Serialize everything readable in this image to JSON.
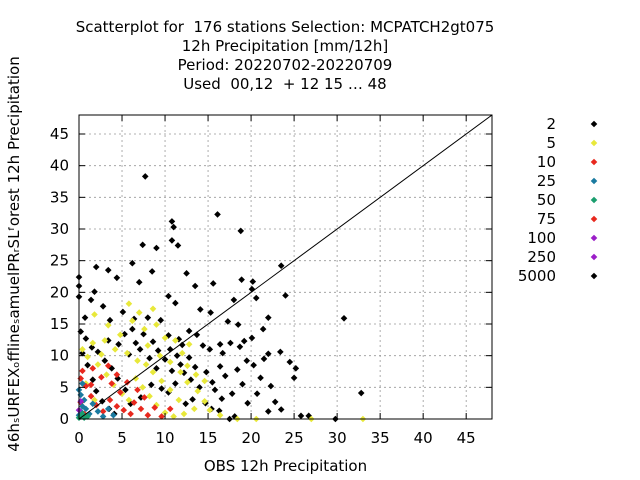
{
  "chart_data": {
    "type": "scatter",
    "title_lines": [
      "Scatterplot for  176 stations Selection: MCPATCH2gt075",
      "12h Precipitation [mm/12h]",
      "Period: 20220702-20220709",
      "Used  00,12  + 12 15 … 48"
    ],
    "xlabel": "OBS 12h Precipitation",
    "ylabel": "46hₛURFEXₒfflineₛamuelPRᵣSLᶠorest 12h Precipitation",
    "xlim": [
      0,
      48
    ],
    "ylim": [
      0,
      48
    ],
    "x_ticks": [
      "0",
      "5",
      "10",
      "15",
      "20",
      "25",
      "30",
      "35",
      "40",
      "45"
    ],
    "y_ticks": [
      "0",
      "5",
      "10",
      "15",
      "20",
      "25",
      "30",
      "35",
      "40",
      "45"
    ],
    "grid": true,
    "diagonal": true,
    "legend_position": "right",
    "series": [
      {
        "name": "2",
        "color": "#000000",
        "points": [
          [
            7.7,
            38.3
          ],
          [
            10.8,
            31.2
          ],
          [
            11,
            30.3
          ],
          [
            16.1,
            32.3
          ],
          [
            18.8,
            29.7
          ],
          [
            7.4,
            27.5
          ],
          [
            9,
            27
          ],
          [
            10.8,
            28.2
          ],
          [
            11.5,
            27.4
          ],
          [
            30.8,
            15.9
          ],
          [
            32.8,
            4.1
          ],
          [
            23.5,
            24.2
          ],
          [
            20.2,
            21.7
          ],
          [
            20.6,
            19.1
          ],
          [
            20.1,
            20.5
          ],
          [
            2,
            24
          ],
          [
            3.4,
            23.5
          ],
          [
            6.2,
            24.6
          ],
          [
            7,
            21.6
          ],
          [
            8.5,
            23.3
          ],
          [
            0,
            22.4
          ],
          [
            0,
            21
          ],
          [
            0,
            19.3
          ],
          [
            1.8,
            20.1
          ],
          [
            4.4,
            22.3
          ],
          [
            12.5,
            23
          ],
          [
            13.5,
            21
          ],
          [
            15.6,
            21.4
          ],
          [
            18.9,
            22
          ],
          [
            10.4,
            19.4
          ],
          [
            11.2,
            18.3
          ],
          [
            14.1,
            17.3
          ],
          [
            15.3,
            16.8
          ],
          [
            17.3,
            15.4
          ],
          [
            18.5,
            14.9
          ],
          [
            16.4,
            11.8
          ],
          [
            17.6,
            12
          ],
          [
            18.7,
            11.4
          ],
          [
            19.5,
            9.2
          ],
          [
            20.3,
            8.5
          ],
          [
            21.5,
            9.5
          ],
          [
            22,
            10.3
          ],
          [
            23.4,
            10.6
          ],
          [
            24.5,
            9
          ],
          [
            25.2,
            8
          ],
          [
            25,
            6.5
          ],
          [
            22.3,
            5.2
          ],
          [
            21.1,
            6.5
          ],
          [
            20.7,
            4
          ],
          [
            19.6,
            2.5
          ],
          [
            18.1,
            0.4
          ],
          [
            17.5,
            0
          ],
          [
            16.3,
            1.3
          ],
          [
            15.4,
            1.6
          ],
          [
            14.7,
            2.5
          ],
          [
            13.2,
            3.1
          ],
          [
            12.4,
            2.4
          ],
          [
            22.8,
            2.7
          ],
          [
            23.5,
            1.5
          ],
          [
            22,
            1.2
          ],
          [
            25.8,
            0.5
          ],
          [
            26.7,
            0.5
          ],
          [
            29.8,
            0
          ],
          [
            9.5,
            15.6
          ],
          [
            8,
            16
          ],
          [
            6.4,
            15.8
          ],
          [
            5.1,
            16.9
          ],
          [
            3.6,
            15.6
          ],
          [
            2.8,
            17.8
          ],
          [
            1.4,
            18.8
          ],
          [
            0.7,
            16
          ],
          [
            10.4,
            13.2
          ],
          [
            11.6,
            12.6
          ],
          [
            12.8,
            13.9
          ],
          [
            13.7,
            13.3
          ],
          [
            14.4,
            11.6
          ],
          [
            15.2,
            11
          ],
          [
            16.7,
            10.4
          ],
          [
            16.4,
            8.3
          ],
          [
            14.8,
            7.4
          ],
          [
            13.5,
            8.2
          ],
          [
            12.8,
            9.7
          ],
          [
            12.2,
            7.3
          ],
          [
            11.2,
            5.6
          ],
          [
            10.4,
            4.2
          ],
          [
            9.6,
            4.8
          ],
          [
            8.4,
            5.4
          ],
          [
            7.2,
            3.4
          ],
          [
            6,
            2.4
          ],
          [
            5.4,
            4.6
          ],
          [
            4.5,
            6.4
          ],
          [
            3.8,
            8
          ],
          [
            3,
            9.2
          ],
          [
            2.2,
            10.6
          ],
          [
            1.5,
            11.3
          ],
          [
            0.8,
            12.7
          ],
          [
            0.2,
            13.8
          ],
          [
            0.4,
            10.4
          ],
          [
            1,
            8.5
          ],
          [
            1.6,
            6.2
          ],
          [
            2,
            4.4
          ],
          [
            2.7,
            2.8
          ],
          [
            3.5,
            1.6
          ],
          [
            4.1,
            0.8
          ],
          [
            5.8,
            10.2
          ],
          [
            6.6,
            12
          ],
          [
            7.5,
            13.4
          ],
          [
            8.6,
            12.2
          ],
          [
            9.2,
            10.8
          ],
          [
            10,
            9.4
          ],
          [
            10.6,
            11
          ],
          [
            11.4,
            10
          ],
          [
            12,
            11.7
          ],
          [
            3.4,
            12.4
          ],
          [
            4.6,
            11.8
          ],
          [
            5.3,
            13.4
          ],
          [
            6.2,
            14.2
          ],
          [
            7.1,
            11
          ],
          [
            8.2,
            9.6
          ],
          [
            9,
            8
          ],
          [
            10.8,
            7.6
          ],
          [
            11.8,
            8.6
          ],
          [
            13,
            6.2
          ],
          [
            14,
            5
          ],
          [
            15.5,
            5.8
          ],
          [
            17,
            6.8
          ],
          [
            18.4,
            7.8
          ],
          [
            19,
            5.5
          ],
          [
            17.8,
            4
          ],
          [
            16.6,
            3.2
          ],
          [
            15.8,
            4.6
          ],
          [
            19.2,
            12.3
          ],
          [
            20.1,
            12.8
          ],
          [
            21.4,
            14.2
          ],
          [
            22,
            16
          ],
          [
            24,
            19.5
          ],
          [
            18,
            18.8
          ]
        ]
      },
      {
        "name": "5",
        "color": "#e8e83a",
        "points": [
          [
            1.8,
            16.5
          ],
          [
            3.4,
            14.8
          ],
          [
            4.8,
            13.3
          ],
          [
            6.2,
            15.5
          ],
          [
            7.6,
            14.2
          ],
          [
            9,
            14.9
          ],
          [
            3,
            12.4
          ],
          [
            4.2,
            11
          ],
          [
            5.6,
            10.4
          ],
          [
            6.8,
            9.2
          ],
          [
            8,
            11.6
          ],
          [
            9.4,
            10
          ],
          [
            10.6,
            9
          ],
          [
            11.8,
            7.4
          ],
          [
            12.6,
            5.8
          ],
          [
            13.8,
            4.4
          ],
          [
            14.6,
            2.8
          ],
          [
            15.2,
            1.4
          ],
          [
            16.4,
            0.6
          ],
          [
            18.4,
            0
          ],
          [
            20.6,
            0
          ],
          [
            27,
            0
          ],
          [
            33,
            0
          ],
          [
            2.2,
            8.6
          ],
          [
            3.2,
            7
          ],
          [
            4,
            5.4
          ],
          [
            5,
            4
          ],
          [
            5.8,
            3
          ],
          [
            6.6,
            6.4
          ],
          [
            7.4,
            5
          ],
          [
            8.2,
            3.6
          ],
          [
            9,
            2.2
          ],
          [
            10,
            1
          ],
          [
            11,
            0.4
          ],
          [
            11.6,
            3
          ],
          [
            10.6,
            4.6
          ],
          [
            9.6,
            6
          ],
          [
            8.6,
            7.4
          ],
          [
            7.8,
            8.6
          ],
          [
            1,
            9.8
          ],
          [
            0.4,
            11
          ],
          [
            1.6,
            12
          ],
          [
            2.6,
            10.2
          ],
          [
            0.8,
            5.6
          ],
          [
            1.8,
            3
          ],
          [
            12.6,
            8.4
          ],
          [
            13.6,
            7
          ],
          [
            14.6,
            6
          ],
          [
            12,
            10.4
          ],
          [
            11.2,
            12.4
          ],
          [
            10,
            12.8
          ],
          [
            7,
            16.8
          ],
          [
            8.6,
            17.4
          ],
          [
            5.8,
            18.2
          ],
          [
            12.8,
            11.8
          ],
          [
            13.4,
            1.6
          ],
          [
            12.2,
            0.8
          ]
        ]
      },
      {
        "name": "10",
        "color": "#e8281e",
        "points": [
          [
            0.4,
            7.6
          ],
          [
            0.8,
            5.2
          ],
          [
            1.4,
            3.6
          ],
          [
            2,
            2.2
          ],
          [
            2.8,
            1.2
          ],
          [
            3.6,
            3
          ],
          [
            4.4,
            2
          ],
          [
            5.2,
            1.4
          ],
          [
            6,
            0.8
          ],
          [
            4.8,
            4.2
          ],
          [
            3.8,
            5.6
          ],
          [
            2.6,
            6.6
          ],
          [
            1.6,
            8
          ],
          [
            6.4,
            2.6
          ],
          [
            7.2,
            1.6
          ],
          [
            8,
            0.6
          ],
          [
            8.8,
            1.8
          ],
          [
            7.6,
            3.4
          ],
          [
            6.8,
            4.6
          ],
          [
            5.6,
            5.8
          ],
          [
            4.4,
            7
          ],
          [
            3.4,
            8.4
          ],
          [
            9.6,
            0.4
          ],
          [
            10.6,
            1.6
          ],
          [
            0.2,
            2.6
          ],
          [
            0.6,
            0.8
          ]
        ]
      },
      {
        "name": "25",
        "color": "#1a7aa0",
        "points": [
          [
            0,
            0.6
          ],
          [
            0.2,
            1.2
          ],
          [
            0.4,
            2
          ],
          [
            0.6,
            3
          ],
          [
            0.2,
            3.8
          ],
          [
            0.8,
            1.6
          ],
          [
            1.2,
            0.8
          ],
          [
            1.6,
            2.4
          ],
          [
            2.2,
            1.2
          ],
          [
            2.8,
            0.4
          ],
          [
            3.4,
            1.6
          ],
          [
            4,
            0.6
          ],
          [
            0,
            4.6
          ],
          [
            0.4,
            5.6
          ]
        ]
      },
      {
        "name": "50",
        "color": "#1a9e6e",
        "points": [
          [
            0,
            0.2
          ],
          [
            0.2,
            0.4
          ],
          [
            0.6,
            0.2
          ],
          [
            0.4,
            0.8
          ],
          [
            1,
            0.4
          ]
        ]
      },
      {
        "name": "75",
        "color": "#e8281e",
        "points": [
          [
            0.2,
            6.4
          ],
          [
            1.4,
            5.4
          ]
        ]
      },
      {
        "name": "100",
        "color": "#9b1ec8",
        "points": [
          [
            0,
            1.4
          ],
          [
            0.2,
            2.8
          ]
        ]
      },
      {
        "name": "250",
        "color": "#9b1ec8",
        "points": []
      },
      {
        "name": "5000",
        "color": "#000000",
        "points": []
      }
    ]
  }
}
